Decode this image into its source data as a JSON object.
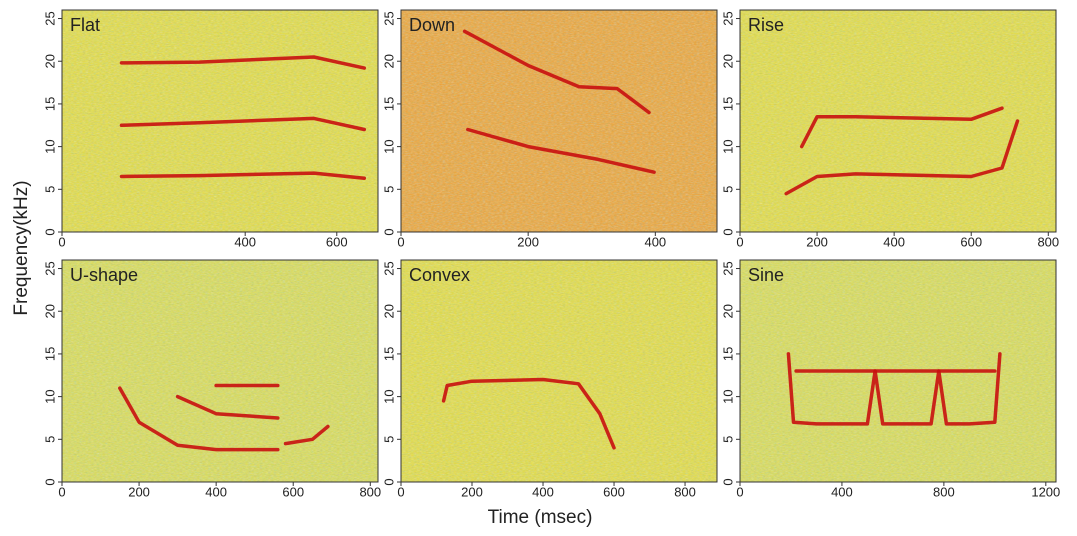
{
  "xlabel": "Time (msec)",
  "ylabel": "Frequency(kHz)",
  "chart_data": [
    {
      "type": "spectrogram",
      "title": "Flat",
      "background": "#e6dc3c",
      "line_color": "#c81010",
      "xlim": [
        0,
        690
      ],
      "xticks": [
        0,
        400,
        600
      ],
      "ylim": [
        0,
        26
      ],
      "yticks": [
        0,
        5,
        10,
        15,
        20,
        25
      ],
      "series": [
        {
          "x": [
            130,
            300,
            550,
            660
          ],
          "values": [
            6.5,
            6.6,
            6.9,
            6.3
          ]
        },
        {
          "x": [
            130,
            300,
            550,
            660
          ],
          "values": [
            12.5,
            12.8,
            13.3,
            12.0
          ]
        },
        {
          "x": [
            130,
            300,
            550,
            660
          ],
          "values": [
            19.8,
            19.9,
            20.5,
            19.2
          ]
        }
      ]
    },
    {
      "type": "spectrogram",
      "title": "Down",
      "background": "#f0a030",
      "line_color": "#c81010",
      "xlim": [
        0,
        497
      ],
      "xticks": [
        0,
        200,
        400
      ],
      "ylim": [
        0,
        26
      ],
      "yticks": [
        0,
        5,
        10,
        15,
        20,
        25
      ],
      "series": [
        {
          "x": [
            100,
            200,
            280,
            340,
            390
          ],
          "values": [
            23.5,
            19.5,
            17,
            16.8,
            14
          ]
        },
        {
          "x": [
            105,
            200,
            310,
            398
          ],
          "values": [
            12,
            10,
            8.5,
            7
          ]
        }
      ]
    },
    {
      "type": "spectrogram",
      "title": "Rise",
      "background": "#e6dc3c",
      "line_color": "#c81010",
      "xlim": [
        0,
        820
      ],
      "xticks": [
        0,
        200,
        400,
        600,
        800
      ],
      "ylim": [
        0,
        26
      ],
      "yticks": [
        0,
        5,
        10,
        15,
        20,
        25
      ],
      "series": [
        {
          "x": [
            120,
            200,
            300,
            600,
            680,
            720
          ],
          "values": [
            4.5,
            6.5,
            6.8,
            6.5,
            7.5,
            13
          ]
        },
        {
          "x": [
            160,
            200,
            300,
            600,
            680
          ],
          "values": [
            10,
            13.5,
            13.5,
            13.2,
            14.5
          ]
        }
      ]
    },
    {
      "type": "spectrogram",
      "title": "U-shape",
      "background": "#dcdc50",
      "line_color": "#c81010",
      "xlim": [
        0,
        820
      ],
      "xticks": [
        0,
        200,
        400,
        600,
        800
      ],
      "ylim": [
        0,
        26
      ],
      "yticks": [
        0,
        5,
        10,
        15,
        20,
        25
      ],
      "series": [
        {
          "x": [
            150,
            200,
            300,
            400,
            560
          ],
          "values": [
            11,
            7,
            4.3,
            3.8,
            3.8
          ]
        },
        {
          "x": [
            580,
            650,
            690
          ],
          "values": [
            4.5,
            5,
            6.5
          ]
        },
        {
          "x": [
            300,
            400,
            560
          ],
          "values": [
            10,
            8,
            7.5
          ]
        },
        {
          "x": [
            400,
            560
          ],
          "values": [
            11.3,
            11.3
          ]
        }
      ]
    },
    {
      "type": "spectrogram",
      "title": "Convex",
      "background": "#e6dc3c",
      "line_color": "#c81010",
      "xlim": [
        0,
        890
      ],
      "xticks": [
        0,
        200,
        400,
        600,
        800
      ],
      "ylim": [
        0,
        26
      ],
      "yticks": [
        0,
        5,
        10,
        15,
        20,
        25
      ],
      "series": [
        {
          "x": [
            120,
            130,
            200,
            400,
            500,
            560,
            600
          ],
          "values": [
            9.5,
            11.3,
            11.8,
            12,
            11.5,
            8,
            4
          ]
        }
      ]
    },
    {
      "type": "spectrogram",
      "title": "Sine",
      "background": "#dcdc50",
      "line_color": "#c81010",
      "xlim": [
        0,
        1240
      ],
      "xticks": [
        0,
        400,
        800,
        1200
      ],
      "ylim": [
        0,
        26
      ],
      "yticks": [
        0,
        5,
        10,
        15,
        20,
        25
      ],
      "series": [
        {
          "x": [
            190,
            210,
            300,
            500,
            530,
            560,
            600,
            750,
            780,
            810,
            900,
            1000,
            1020
          ],
          "values": [
            15,
            7,
            6.8,
            6.8,
            13,
            6.8,
            6.8,
            6.8,
            13,
            6.8,
            6.8,
            7,
            15
          ]
        },
        {
          "x": [
            220,
            500,
            560,
            750,
            810,
            1000
          ],
          "values": [
            13,
            13,
            13,
            13,
            13,
            13
          ]
        }
      ]
    }
  ]
}
